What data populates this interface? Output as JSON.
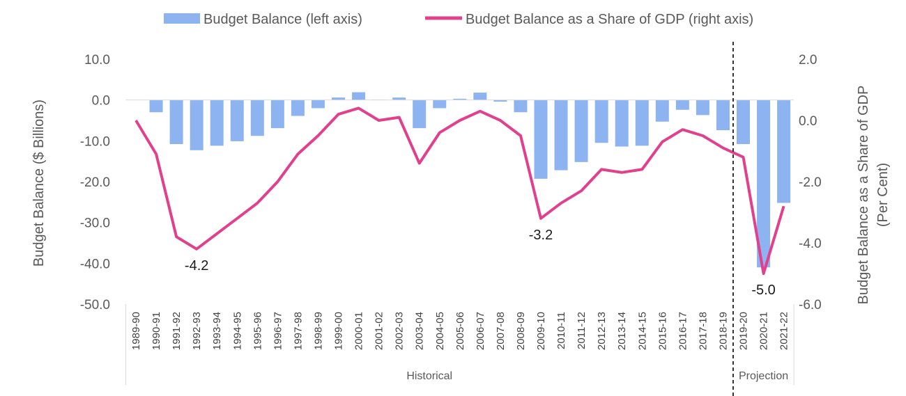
{
  "chart_data": {
    "type": "bar+line",
    "legend": {
      "bar_label": "Budget Balance (left axis)",
      "line_label": "Budget Balance as a Share of GDP (right axis)",
      "position": "top-center"
    },
    "ylabel_left": "Budget Balance ($ Billions)",
    "ylabel_right_line1": "Budget Balance as a Share of GDP",
    "ylabel_right_line2": "(Per Cent)",
    "ylim_left": [
      -50,
      10
    ],
    "ylim_right": [
      -6,
      2
    ],
    "left_ticks": [
      "10.0",
      "0.0",
      "-10.0",
      "-20.0",
      "-30.0",
      "-40.0",
      "-50.0"
    ],
    "left_tick_values": [
      10,
      0,
      -10,
      -20,
      -30,
      -40,
      -50
    ],
    "right_ticks": [
      "2.0",
      "0.0",
      "-2.0",
      "-4.0",
      "-6.0"
    ],
    "right_tick_values": [
      2,
      0,
      -2,
      -4,
      -6
    ],
    "categories": [
      "1989-90",
      "1990-91",
      "1991-92",
      "1992-93",
      "1993-94",
      "1994-95",
      "1995-96",
      "1996-97",
      "1997-98",
      "1998-99",
      "1999-00",
      "2000-01",
      "2001-02",
      "2002-03",
      "2003-04",
      "2004-05",
      "2005-06",
      "2006-07",
      "2007-08",
      "2008-09",
      "2009-10",
      "2010-11",
      "2011-12",
      "2012-13",
      "2013-14",
      "2014-15",
      "2015-16",
      "2016-17",
      "2017-18",
      "2018-19",
      "2019-20",
      "2020-21",
      "2021-22"
    ],
    "series": [
      {
        "name": "Budget Balance (left axis)",
        "type": "bar",
        "axis": "left",
        "values": [
          0,
          -3.0,
          -10.8,
          -12.3,
          -11.2,
          -10.1,
          -8.8,
          -6.9,
          -3.9,
          -2.0,
          0.6,
          1.9,
          0.1,
          0.6,
          -6.9,
          -2.0,
          0.3,
          1.8,
          -0.4,
          -3.0,
          -19.3,
          -17.2,
          -15.2,
          -10.5,
          -11.4,
          -11.2,
          -5.3,
          -2.4,
          -3.7,
          -7.4,
          -10.8,
          -41.0,
          -25.2
        ]
      },
      {
        "name": "Budget Balance as a Share of GDP (right axis)",
        "type": "line",
        "axis": "right",
        "values": [
          0.0,
          -1.1,
          -3.8,
          -4.2,
          -3.7,
          -3.2,
          -2.7,
          -2.0,
          -1.1,
          -0.5,
          0.2,
          0.4,
          0.0,
          0.1,
          -1.4,
          -0.4,
          -0.0,
          0.3,
          0.0,
          -0.5,
          -3.2,
          -2.7,
          -2.3,
          -1.6,
          -1.7,
          -1.6,
          -0.7,
          -0.3,
          -0.5,
          -0.9,
          -1.2,
          -5.0,
          -2.8
        ]
      }
    ],
    "annotations": [
      {
        "text": "-4.2",
        "index": 3
      },
      {
        "text": "-3.2",
        "index": 20
      },
      {
        "text": "-5.0",
        "index": 31
      }
    ],
    "groups": [
      {
        "label": "Historical",
        "from_index": 0,
        "to_index": 29
      },
      {
        "label": "Projection",
        "from_index": 30,
        "to_index": 32
      }
    ],
    "colors": {
      "bar": "#8db4f0",
      "line": "#e0408c",
      "divider": "#000000"
    },
    "grid": false
  }
}
